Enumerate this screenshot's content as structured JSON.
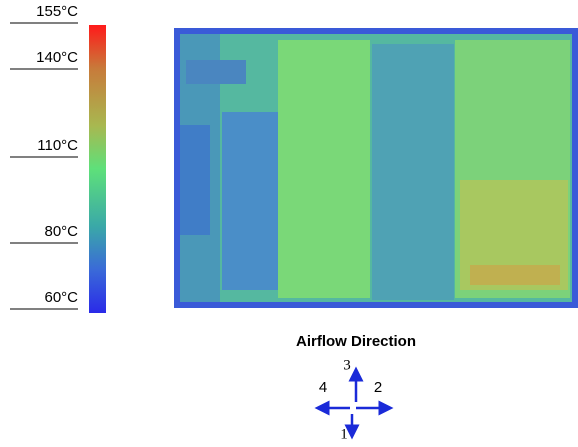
{
  "scale": {
    "labels": [
      "155°C",
      "140°C",
      "110°C",
      "80°C",
      "60°C"
    ]
  },
  "airflow": {
    "title": "Airflow Direction",
    "directions": [
      "3",
      "2",
      "4",
      "1"
    ]
  }
}
